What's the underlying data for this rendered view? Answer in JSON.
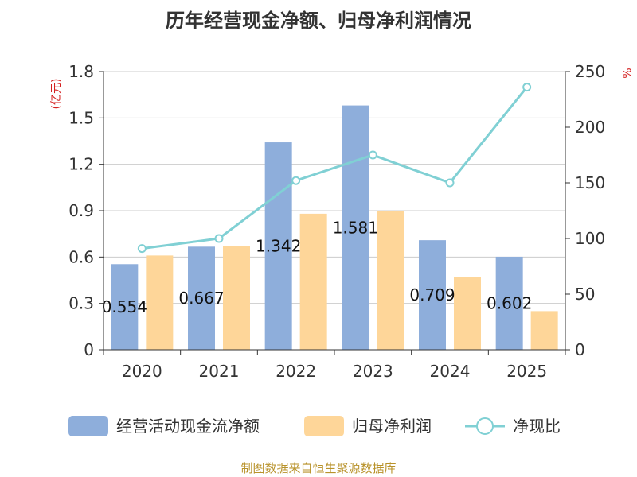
{
  "title": "历年经营现金净额、归母净利润情况",
  "source": "制图数据来自恒生聚源数据库",
  "chart_data": {
    "type": "bar+line",
    "categories": [
      "2020",
      "2021",
      "2022",
      "2023",
      "2024",
      "2025"
    ],
    "series": [
      {
        "name": "经营活动现金流净额",
        "type": "bar",
        "axis": "left",
        "color": "#8eaedb",
        "values": [
          0.554,
          0.667,
          1.342,
          1.581,
          0.709,
          0.602
        ]
      },
      {
        "name": "归母净利润",
        "type": "bar",
        "axis": "left",
        "color": "#fed699",
        "values": [
          0.61,
          0.67,
          0.88,
          0.9,
          0.47,
          0.25
        ]
      },
      {
        "name": "净现比",
        "type": "line",
        "axis": "right",
        "color": "#80d0d4",
        "values": [
          91,
          100,
          152,
          175,
          150,
          236
        ]
      }
    ],
    "data_labels": [
      "0.554",
      "0.667",
      "1.342",
      "1.581",
      "0.709",
      "0.602"
    ],
    "y_left": {
      "label": "(亿元)",
      "min": 0,
      "max": 1.8,
      "ticks": [
        "0",
        "0.3",
        "0.6",
        "0.9",
        "1.2",
        "1.5",
        "1.8"
      ]
    },
    "y_right": {
      "label": "%",
      "min": 0,
      "max": 250,
      "ticks": [
        "0",
        "50",
        "100",
        "150",
        "200",
        "250"
      ]
    },
    "grid": true,
    "legend": {
      "placement": "bottom",
      "items": [
        "经营活动现金流净额",
        "归母净利润",
        "净现比"
      ]
    }
  }
}
